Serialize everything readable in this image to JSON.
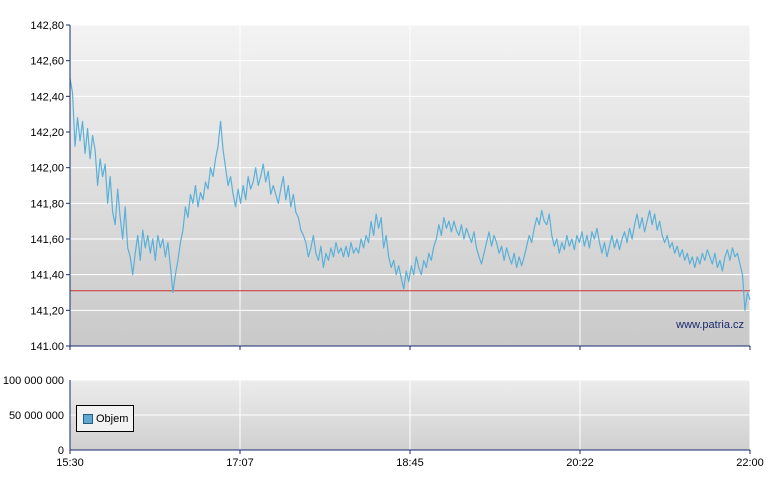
{
  "chart_data": [
    {
      "type": "line",
      "series": [
        {
          "color": "#5ab0d8",
          "points": [
            [
              0,
              142.5
            ],
            [
              1,
              142.42
            ],
            [
              2,
              142.12
            ],
            [
              3,
              142.28
            ],
            [
              4,
              142.15
            ],
            [
              5,
              142.26
            ],
            [
              6,
              142.08
            ],
            [
              7,
              142.22
            ],
            [
              8,
              142.05
            ],
            [
              9,
              142.18
            ],
            [
              10,
              142.1
            ],
            [
              11,
              141.9
            ],
            [
              12,
              142.05
            ],
            [
              13,
              141.95
            ],
            [
              14,
              142.02
            ],
            [
              15,
              141.8
            ],
            [
              16,
              141.95
            ],
            [
              17,
              141.75
            ],
            [
              18,
              141.68
            ],
            [
              19,
              141.88
            ],
            [
              20,
              141.72
            ],
            [
              21,
              141.6
            ],
            [
              22,
              141.78
            ],
            [
              23,
              141.55
            ],
            [
              24,
              141.5
            ],
            [
              25,
              141.4
            ],
            [
              26,
              141.52
            ],
            [
              27,
              141.62
            ],
            [
              28,
              141.48
            ],
            [
              29,
              141.65
            ],
            [
              30,
              141.55
            ],
            [
              31,
              141.62
            ],
            [
              32,
              141.52
            ],
            [
              33,
              141.6
            ],
            [
              34,
              141.48
            ],
            [
              35,
              141.62
            ],
            [
              36,
              141.55
            ],
            [
              37,
              141.6
            ],
            [
              38,
              141.5
            ],
            [
              39,
              141.58
            ],
            [
              40,
              141.45
            ],
            [
              41,
              141.3
            ],
            [
              42,
              141.4
            ],
            [
              43,
              141.48
            ],
            [
              44,
              141.58
            ],
            [
              45,
              141.65
            ],
            [
              46,
              141.78
            ],
            [
              47,
              141.72
            ],
            [
              48,
              141.85
            ],
            [
              49,
              141.8
            ],
            [
              50,
              141.9
            ],
            [
              51,
              141.78
            ],
            [
              52,
              141.86
            ],
            [
              53,
              141.82
            ],
            [
              54,
              141.92
            ],
            [
              55,
              141.88
            ],
            [
              56,
              142.0
            ],
            [
              57,
              141.95
            ],
            [
              58,
              142.05
            ],
            [
              59,
              142.12
            ],
            [
              60,
              142.26
            ],
            [
              61,
              142.1
            ],
            [
              62,
              142.0
            ],
            [
              63,
              141.9
            ],
            [
              64,
              141.95
            ],
            [
              65,
              141.85
            ],
            [
              66,
              141.78
            ],
            [
              67,
              141.88
            ],
            [
              68,
              141.8
            ],
            [
              69,
              141.9
            ],
            [
              70,
              141.82
            ],
            [
              71,
              141.95
            ],
            [
              72,
              141.88
            ],
            [
              73,
              141.92
            ],
            [
              74,
              142.0
            ],
            [
              75,
              141.9
            ],
            [
              76,
              141.95
            ],
            [
              77,
              142.02
            ],
            [
              78,
              141.92
            ],
            [
              79,
              141.98
            ],
            [
              80,
              141.85
            ],
            [
              81,
              141.9
            ],
            [
              82,
              141.85
            ],
            [
              83,
              141.8
            ],
            [
              84,
              141.88
            ],
            [
              85,
              141.95
            ],
            [
              86,
              141.82
            ],
            [
              87,
              141.9
            ],
            [
              88,
              141.78
            ],
            [
              89,
              141.85
            ],
            [
              90,
              141.75
            ],
            [
              91,
              141.72
            ],
            [
              92,
              141.65
            ],
            [
              93,
              141.62
            ],
            [
              94,
              141.58
            ],
            [
              95,
              141.5
            ],
            [
              96,
              141.55
            ],
            [
              97,
              141.62
            ],
            [
              98,
              141.52
            ],
            [
              99,
              141.48
            ],
            [
              100,
              141.56
            ],
            [
              101,
              141.44
            ],
            [
              102,
              141.52
            ],
            [
              103,
              141.48
            ],
            [
              104,
              141.55
            ],
            [
              105,
              141.5
            ],
            [
              106,
              141.58
            ],
            [
              107,
              141.52
            ],
            [
              108,
              141.55
            ],
            [
              109,
              141.5
            ],
            [
              110,
              141.56
            ],
            [
              111,
              141.5
            ],
            [
              112,
              141.58
            ],
            [
              113,
              141.52
            ],
            [
              114,
              141.55
            ],
            [
              115,
              141.52
            ],
            [
              116,
              141.6
            ],
            [
              117,
              141.55
            ],
            [
              118,
              141.62
            ],
            [
              119,
              141.58
            ],
            [
              120,
              141.7
            ],
            [
              121,
              141.62
            ],
            [
              122,
              141.74
            ],
            [
              123,
              141.66
            ],
            [
              124,
              141.72
            ],
            [
              125,
              141.55
            ],
            [
              126,
              141.62
            ],
            [
              127,
              141.5
            ],
            [
              128,
              141.44
            ],
            [
              129,
              141.48
            ],
            [
              130,
              141.4
            ],
            [
              131,
              141.45
            ],
            [
              132,
              141.38
            ],
            [
              133,
              141.32
            ],
            [
              134,
              141.42
            ],
            [
              135,
              141.36
            ],
            [
              136,
              141.45
            ],
            [
              137,
              141.4
            ],
            [
              138,
              141.5
            ],
            [
              139,
              141.44
            ],
            [
              140,
              141.4
            ],
            [
              141,
              141.48
            ],
            [
              142,
              141.44
            ],
            [
              143,
              141.52
            ],
            [
              144,
              141.48
            ],
            [
              145,
              141.56
            ],
            [
              146,
              141.6
            ],
            [
              147,
              141.68
            ],
            [
              148,
              141.62
            ],
            [
              149,
              141.72
            ],
            [
              150,
              141.66
            ],
            [
              151,
              141.7
            ],
            [
              152,
              141.64
            ],
            [
              153,
              141.7
            ],
            [
              154,
              141.65
            ],
            [
              155,
              141.62
            ],
            [
              156,
              141.68
            ],
            [
              157,
              141.6
            ],
            [
              158,
              141.66
            ],
            [
              159,
              141.62
            ],
            [
              160,
              141.58
            ],
            [
              161,
              141.64
            ],
            [
              162,
              141.55
            ],
            [
              163,
              141.5
            ],
            [
              164,
              141.46
            ],
            [
              165,
              141.52
            ],
            [
              166,
              141.58
            ],
            [
              167,
              141.64
            ],
            [
              168,
              141.56
            ],
            [
              169,
              141.62
            ],
            [
              170,
              141.58
            ],
            [
              171,
              141.52
            ],
            [
              172,
              141.56
            ],
            [
              173,
              141.48
            ],
            [
              174,
              141.55
            ],
            [
              175,
              141.5
            ],
            [
              176,
              141.46
            ],
            [
              177,
              141.52
            ],
            [
              178,
              141.44
            ],
            [
              179,
              141.5
            ],
            [
              180,
              141.45
            ],
            [
              181,
              141.5
            ],
            [
              182,
              141.56
            ],
            [
              183,
              141.62
            ],
            [
              184,
              141.58
            ],
            [
              185,
              141.66
            ],
            [
              186,
              141.72
            ],
            [
              187,
              141.68
            ],
            [
              188,
              141.76
            ],
            [
              189,
              141.7
            ],
            [
              190,
              141.68
            ],
            [
              191,
              141.74
            ],
            [
              192,
              141.62
            ],
            [
              193,
              141.56
            ],
            [
              194,
              141.6
            ],
            [
              195,
              141.52
            ],
            [
              196,
              141.58
            ],
            [
              197,
              141.54
            ],
            [
              198,
              141.62
            ],
            [
              199,
              141.56
            ],
            [
              200,
              141.6
            ],
            [
              201,
              141.54
            ],
            [
              202,
              141.62
            ],
            [
              203,
              141.58
            ],
            [
              204,
              141.64
            ],
            [
              205,
              141.56
            ],
            [
              206,
              141.62
            ],
            [
              207,
              141.55
            ],
            [
              208,
              141.64
            ],
            [
              209,
              141.6
            ],
            [
              210,
              141.66
            ],
            [
              211,
              141.58
            ],
            [
              212,
              141.52
            ],
            [
              213,
              141.58
            ],
            [
              214,
              141.5
            ],
            [
              215,
              141.56
            ],
            [
              216,
              141.62
            ],
            [
              217,
              141.55
            ],
            [
              218,
              141.6
            ],
            [
              219,
              141.54
            ],
            [
              220,
              141.6
            ],
            [
              221,
              141.64
            ],
            [
              222,
              141.58
            ],
            [
              223,
              141.66
            ],
            [
              224,
              141.6
            ],
            [
              225,
              141.68
            ],
            [
              226,
              141.74
            ],
            [
              227,
              141.66
            ],
            [
              228,
              141.72
            ],
            [
              229,
              141.64
            ],
            [
              230,
              141.7
            ],
            [
              231,
              141.76
            ],
            [
              232,
              141.68
            ],
            [
              233,
              141.74
            ],
            [
              234,
              141.65
            ],
            [
              235,
              141.7
            ],
            [
              236,
              141.62
            ],
            [
              237,
              141.58
            ],
            [
              238,
              141.62
            ],
            [
              239,
              141.55
            ],
            [
              240,
              141.58
            ],
            [
              241,
              141.52
            ],
            [
              242,
              141.56
            ],
            [
              243,
              141.5
            ],
            [
              244,
              141.54
            ],
            [
              245,
              141.48
            ],
            [
              246,
              141.52
            ],
            [
              247,
              141.46
            ],
            [
              248,
              141.5
            ],
            [
              249,
              141.44
            ],
            [
              250,
              141.5
            ],
            [
              251,
              141.46
            ],
            [
              252,
              141.52
            ],
            [
              253,
              141.48
            ],
            [
              254,
              141.54
            ],
            [
              255,
              141.5
            ],
            [
              256,
              141.46
            ],
            [
              257,
              141.52
            ],
            [
              258,
              141.44
            ],
            [
              259,
              141.48
            ],
            [
              260,
              141.42
            ],
            [
              261,
              141.5
            ],
            [
              262,
              141.54
            ],
            [
              263,
              141.48
            ],
            [
              264,
              141.55
            ],
            [
              265,
              141.5
            ],
            [
              266,
              141.52
            ],
            [
              267,
              141.46
            ],
            [
              268,
              141.4
            ],
            [
              269,
              141.2
            ],
            [
              270,
              141.3
            ],
            [
              271,
              141.26
            ]
          ]
        }
      ],
      "ylim": [
        141.0,
        142.8
      ],
      "yticks": [
        "141.00",
        "141,20",
        "141,40",
        "141,60",
        "141,80",
        "142,00",
        "142,20",
        "142,40",
        "142,60",
        "142,80"
      ],
      "xticks": [
        "15:30",
        "17:07",
        "18:45",
        "20:22",
        "22:00"
      ],
      "reference_line": {
        "value": 141.31,
        "color": "#cc3333"
      },
      "watermark": "www.patria.cz",
      "grid": true
    },
    {
      "type": "bar",
      "yticks": [
        "0",
        "50 000 000",
        "100 000 000"
      ],
      "ylim": [
        0,
        100000000
      ],
      "xticks": [
        "15:30",
        "17:07",
        "18:45",
        "20:22",
        "22:00"
      ],
      "values": [],
      "legend": {
        "label": "Objem",
        "color": "#5fa8d3",
        "position": "bottom-left"
      },
      "grid": true
    }
  ]
}
